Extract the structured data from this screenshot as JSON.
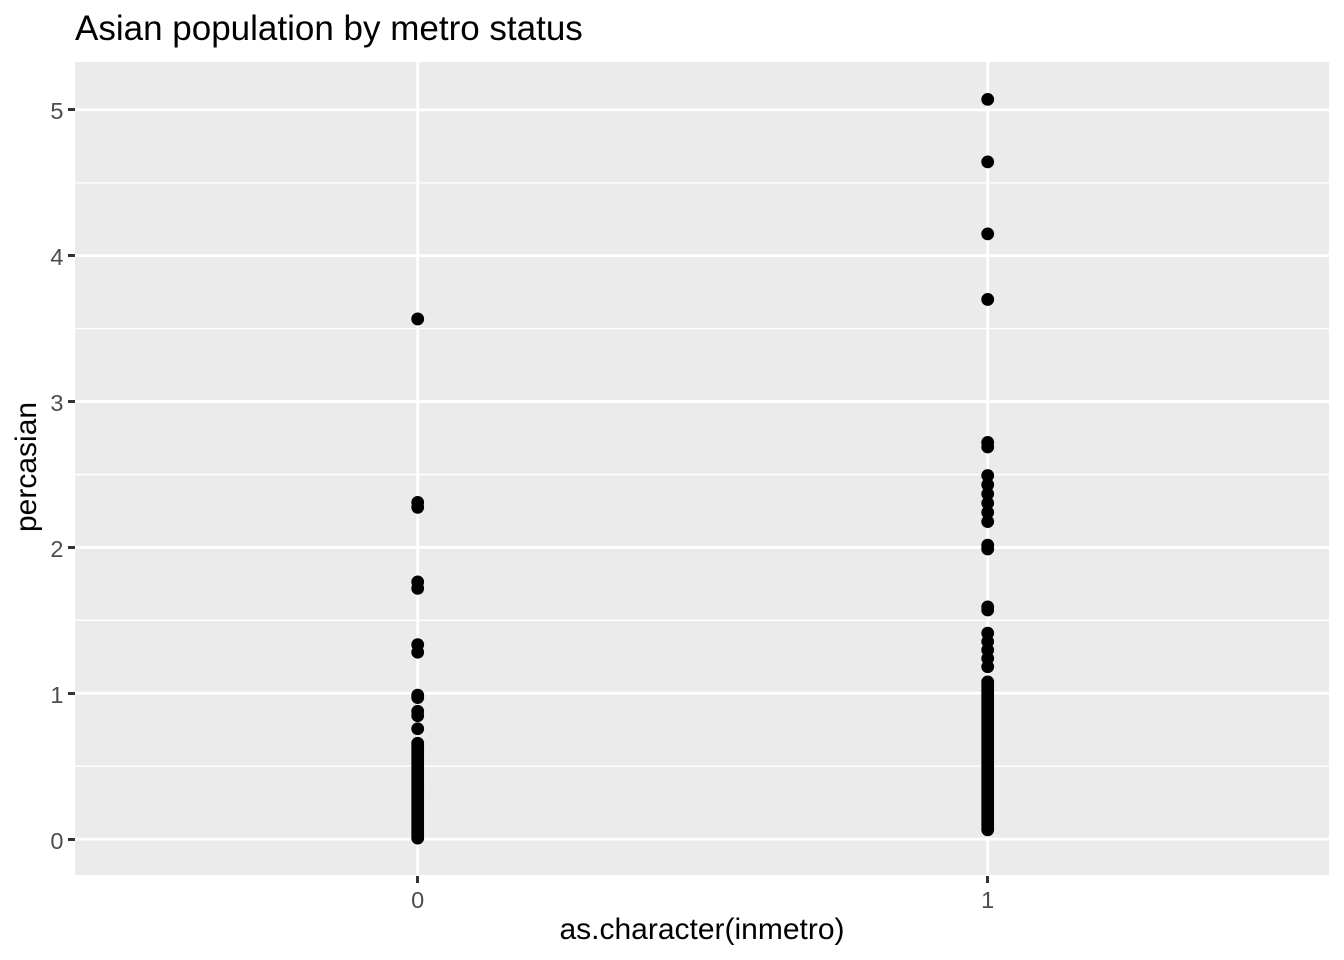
{
  "chart_data": {
    "type": "scatter",
    "title": "Asian population by metro status",
    "xlabel": "as.character(inmetro)",
    "ylabel": "percasian",
    "categories": [
      "0",
      "1"
    ],
    "x_positions": [
      1,
      2
    ],
    "xlim": [
      0.4,
      2.6
    ],
    "ylim": [
      -0.2495,
      5.3249
    ],
    "yticks": [
      0,
      1,
      2,
      3,
      4,
      5
    ],
    "ytick_labels": [
      "0",
      "1",
      "2",
      "3",
      "4",
      "5"
    ],
    "yticks_minor": [
      0.5,
      1.5,
      2.5,
      3.5,
      4.5
    ],
    "grid": true,
    "legend": false,
    "series": [
      {
        "name": "0",
        "x_position": 1,
        "values": [
          3.5666,
          2.3087,
          2.2745,
          1.7638,
          1.7192,
          1.3333,
          1.2812,
          0.9871,
          0.97,
          0.8767,
          0.8459,
          0.7568,
          0.6567,
          0.6376,
          0.6185,
          0.5994,
          0.5803,
          0.5611,
          0.542,
          0.5229,
          0.5038,
          0.4847,
          0.4656,
          0.4465,
          0.4273,
          0.4082,
          0.3891,
          0.37,
          0.3509,
          0.3318,
          0.3127,
          0.2936,
          0.2744,
          0.2553,
          0.2362,
          0.2171,
          0.198,
          0.1789,
          0.1598,
          0.1406,
          0.1215,
          0.1024,
          0.0833,
          0.0642,
          0.0451,
          0.026,
          0.0069
        ]
      },
      {
        "name": "1",
        "x_position": 2,
        "values": [
          5.072,
          4.6435,
          4.15,
          3.7003,
          2.72,
          2.6885,
          2.4931,
          2.4301,
          2.367,
          2.3039,
          2.2402,
          2.1771,
          2.016,
          1.9893,
          1.5924,
          1.5712,
          1.4121,
          1.3545,
          1.297,
          1.2394,
          1.1818,
          1.0783,
          1.0591,
          1.04,
          1.0209,
          1.0017,
          0.9826,
          0.9634,
          0.9443,
          0.9251,
          0.906,
          0.8869,
          0.8677,
          0.8486,
          0.8294,
          0.8103,
          0.7912,
          0.772,
          0.7529,
          0.7337,
          0.7146,
          0.6954,
          0.6763,
          0.6572,
          0.638,
          0.6189,
          0.5997,
          0.5806,
          0.5614,
          0.5423,
          0.5232,
          0.504,
          0.4849,
          0.4657,
          0.4466,
          0.4275,
          0.4083,
          0.3892,
          0.37,
          0.3509,
          0.3317,
          0.3126,
          0.2935,
          0.2743,
          0.2552,
          0.236,
          0.2169,
          0.1977,
          0.1786,
          0.1595,
          0.1403,
          0.1212,
          0.102,
          0.0829,
          0.0638
        ]
      }
    ],
    "style": {
      "panel_background": "#EBEBEB",
      "grid_color": "#FFFFFF",
      "point_color": "#000000",
      "tick_color": "#333333",
      "tick_label_color": "#4D4D4D",
      "text_color": "#000000",
      "point_radius": 6.4,
      "grid_major_width": 2.8,
      "grid_minor_width": 1.4
    }
  }
}
